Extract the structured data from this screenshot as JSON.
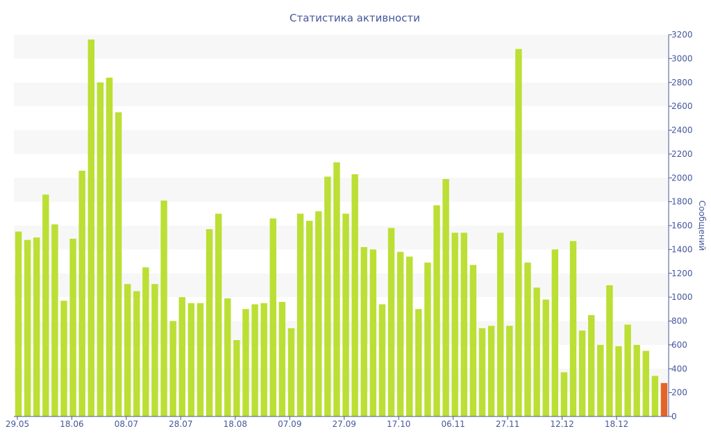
{
  "chart_data": {
    "type": "bar",
    "title": "Статистика активности",
    "ylabel": "Сообщений",
    "xlabel": "",
    "ylim": [
      0,
      3200
    ],
    "yticks": [
      0,
      200,
      400,
      600,
      800,
      1000,
      1200,
      1400,
      1600,
      1800,
      2000,
      2200,
      2400,
      2600,
      2800,
      3000,
      3200
    ],
    "x_tick_labels": [
      "29.05",
      "18.06",
      "08.07",
      "28.07",
      "18.08",
      "07.09",
      "27.09",
      "17.10",
      "06.11",
      "27.11",
      "12.12",
      "18.12"
    ],
    "values": [
      1550,
      1480,
      1500,
      1860,
      1610,
      970,
      1490,
      2060,
      3160,
      2800,
      2840,
      2550,
      1110,
      1050,
      1250,
      1110,
      1810,
      800,
      1000,
      950,
      950,
      1570,
      1700,
      990,
      640,
      900,
      940,
      950,
      1660,
      960,
      740,
      1700,
      1640,
      1720,
      2010,
      2130,
      1700,
      2030,
      1420,
      1400,
      940,
      1580,
      1380,
      1340,
      900,
      1290,
      1770,
      1990,
      1540,
      1540,
      1270,
      740,
      760,
      1540,
      760,
      3080,
      1290,
      1080,
      980,
      1400,
      370,
      1470,
      720,
      850,
      600,
      1100,
      590,
      770,
      600,
      550,
      340,
      280
    ],
    "highlight_index": 71,
    "colors": {
      "bar": "#bbdf34",
      "highlight": "#e46328",
      "band": "#f7f7f7",
      "text": "#44579b",
      "axis": "#44579b"
    },
    "grid": "alternating-bands",
    "legend": "none",
    "y_axis_side": "right"
  }
}
